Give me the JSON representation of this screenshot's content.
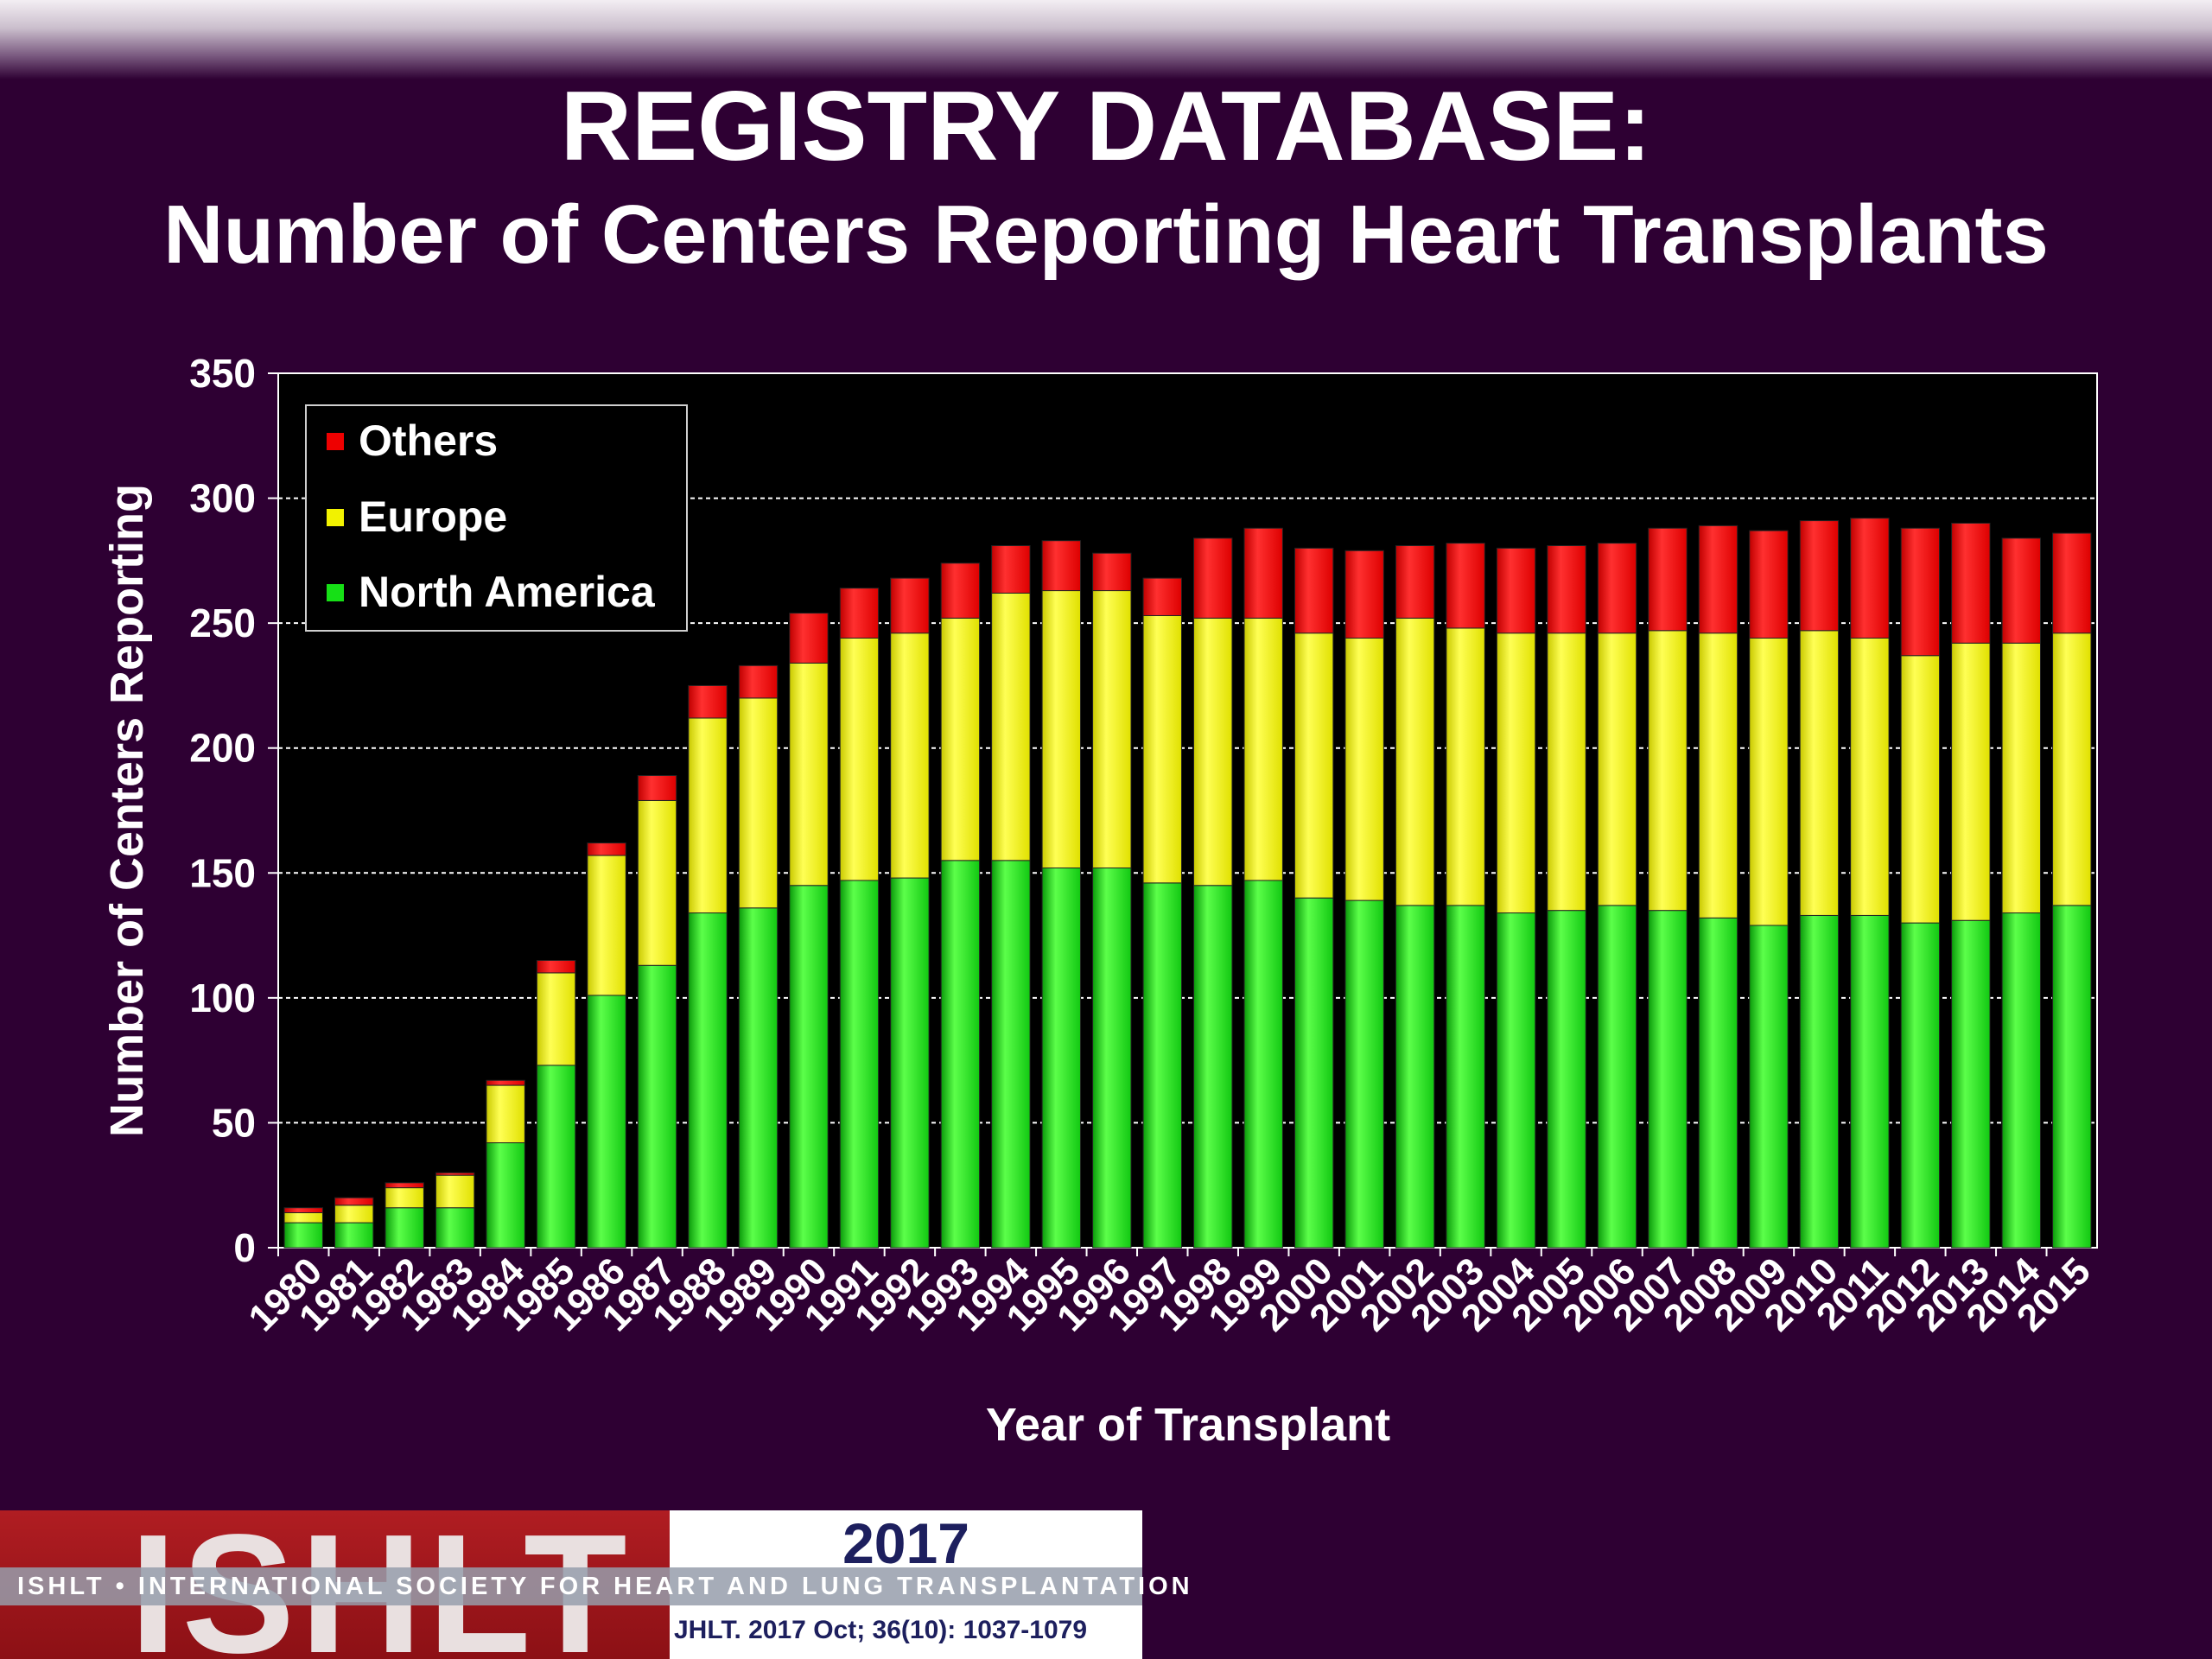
{
  "title": "REGISTRY DATABASE:",
  "subtitle": "Number of Centers Reporting Heart Transplants",
  "colors": {
    "background": "#2e0033",
    "plot_background": "#000000",
    "north_america": "#16e016",
    "europe": "#f2f200",
    "others": "#ee0000"
  },
  "chart_data": {
    "type": "bar",
    "stacked": true,
    "xlabel": "Year of Transplant",
    "ylabel": "Number of Centers Reporting",
    "ylim": [
      0,
      350
    ],
    "yticks": [
      0,
      50,
      100,
      150,
      200,
      250,
      300,
      350
    ],
    "grid": "horizontal dashed",
    "legend_position": "top-left",
    "categories": [
      "1980",
      "1981",
      "1982",
      "1983",
      "1984",
      "1985",
      "1986",
      "1987",
      "1988",
      "1989",
      "1990",
      "1991",
      "1992",
      "1993",
      "1994",
      "1995",
      "1996",
      "1997",
      "1998",
      "1999",
      "2000",
      "2001",
      "2002",
      "2003",
      "2004",
      "2005",
      "2006",
      "2007",
      "2008",
      "2009",
      "2010",
      "2011",
      "2012",
      "2013",
      "2014",
      "2015"
    ],
    "series": [
      {
        "name": "North America",
        "color": "#16e016",
        "values": [
          10,
          10,
          16,
          16,
          42,
          73,
          101,
          113,
          134,
          136,
          145,
          147,
          148,
          155,
          155,
          152,
          152,
          146,
          145,
          147,
          140,
          139,
          137,
          137,
          134,
          135,
          137,
          135,
          132,
          129,
          133,
          133,
          130,
          131,
          134,
          137
        ]
      },
      {
        "name": "Europe",
        "color": "#f2f200",
        "values": [
          4,
          7,
          8,
          13,
          23,
          37,
          56,
          66,
          78,
          84,
          89,
          97,
          98,
          97,
          107,
          111,
          111,
          107,
          107,
          105,
          106,
          105,
          115,
          111,
          112,
          111,
          109,
          112,
          114,
          115,
          114,
          111,
          107,
          111,
          108,
          109
        ]
      },
      {
        "name": "Others",
        "color": "#ee0000",
        "values": [
          2,
          3,
          2,
          1,
          2,
          5,
          5,
          10,
          13,
          13,
          20,
          20,
          22,
          22,
          19,
          20,
          15,
          15,
          32,
          36,
          34,
          35,
          29,
          34,
          34,
          35,
          36,
          41,
          43,
          43,
          44,
          48,
          51,
          48,
          42,
          40
        ]
      }
    ]
  },
  "footer": {
    "logo_text": "ISHLT",
    "society_name": "ISHLT • INTERNATIONAL SOCIETY FOR HEART AND LUNG TRANSPLANTATION",
    "year": "2017",
    "citation": "JHLT. 2017 Oct; 36(10): 1037-1079"
  }
}
